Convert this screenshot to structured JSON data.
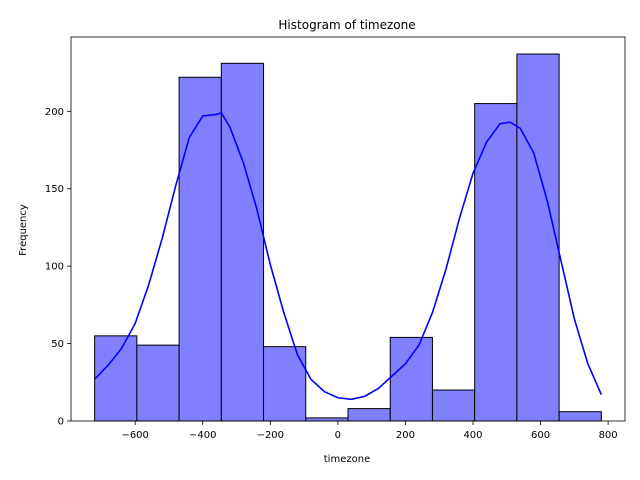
{
  "colors": {
    "bar_fill": "#8080ff",
    "bar_stroke": "#000000",
    "kde_line": "#0000ff",
    "axis": "#000000"
  },
  "chart_data": {
    "type": "histogram",
    "title": "Histogram of timezone",
    "xlabel": "timezone",
    "ylabel": "Frequency",
    "xlim": [
      -790,
      850
    ],
    "ylim": [
      0,
      248
    ],
    "xticks": [
      -600,
      -400,
      -200,
      0,
      200,
      400,
      600,
      800
    ],
    "xtick_labels": [
      "−600",
      "−400",
      "−200",
      "0",
      "200",
      "400",
      "600",
      "800"
    ],
    "yticks": [
      0,
      50,
      100,
      150,
      200
    ],
    "ytick_labels": [
      "0",
      "50",
      "100",
      "150",
      "200"
    ],
    "grid": false,
    "bins": [
      {
        "x0": -720,
        "x1": -595,
        "value": 55
      },
      {
        "x0": -595,
        "x1": -470,
        "value": 49
      },
      {
        "x0": -470,
        "x1": -345,
        "value": 222
      },
      {
        "x0": -345,
        "x1": -220,
        "value": 231
      },
      {
        "x0": -220,
        "x1": -95,
        "value": 48
      },
      {
        "x0": -95,
        "x1": 30,
        "value": 2
      },
      {
        "x0": 30,
        "x1": 155,
        "value": 8
      },
      {
        "x0": 155,
        "x1": 280,
        "value": 54
      },
      {
        "x0": 280,
        "x1": 405,
        "value": 20
      },
      {
        "x0": 405,
        "x1": 530,
        "value": 205
      },
      {
        "x0": 530,
        "x1": 655,
        "value": 237
      },
      {
        "x0": 655,
        "x1": 780,
        "value": 6
      }
    ],
    "kde_points": [
      [
        -720,
        27
      ],
      [
        -680,
        36
      ],
      [
        -640,
        47
      ],
      [
        -600,
        63
      ],
      [
        -560,
        88
      ],
      [
        -520,
        118
      ],
      [
        -480,
        152
      ],
      [
        -440,
        183
      ],
      [
        -400,
        197
      ],
      [
        -360,
        198
      ],
      [
        -345,
        199
      ],
      [
        -320,
        190
      ],
      [
        -280,
        167
      ],
      [
        -240,
        137
      ],
      [
        -200,
        101
      ],
      [
        -160,
        70
      ],
      [
        -120,
        43
      ],
      [
        -80,
        27
      ],
      [
        -40,
        19
      ],
      [
        0,
        15
      ],
      [
        40,
        14
      ],
      [
        80,
        16
      ],
      [
        120,
        21
      ],
      [
        160,
        29
      ],
      [
        200,
        37
      ],
      [
        240,
        49
      ],
      [
        280,
        70
      ],
      [
        320,
        98
      ],
      [
        360,
        131
      ],
      [
        400,
        160
      ],
      [
        440,
        180
      ],
      [
        480,
        192
      ],
      [
        510,
        193
      ],
      [
        540,
        189
      ],
      [
        580,
        173
      ],
      [
        620,
        142
      ],
      [
        660,
        104
      ],
      [
        700,
        66
      ],
      [
        740,
        37
      ],
      [
        780,
        17
      ]
    ]
  }
}
